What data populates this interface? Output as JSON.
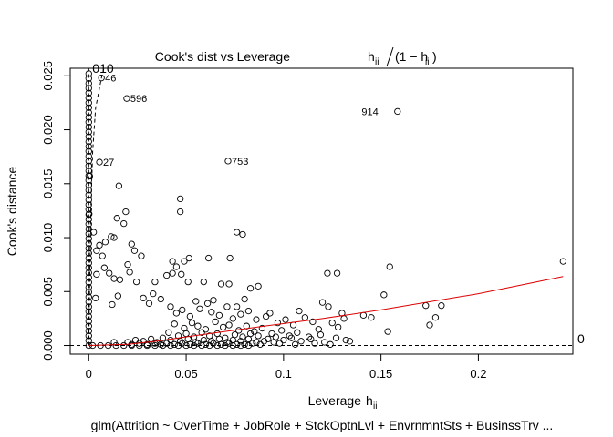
{
  "chart_data": {
    "type": "scatter",
    "title": "Cook's dist vs Leverage",
    "title_formula": {
      "prefix": "h",
      "sub": "ii",
      "open": "(1 − h",
      "close": ")"
    },
    "xlabel": "Leverage",
    "xlabel_symbol": {
      "base": "h",
      "sub": "ii"
    },
    "ylabel": "Cook's distance",
    "caption": "glm(Attrition ~ OverTime + JobRole + StckOptnLvl + EnvrnmntSts + BusinssTrv ...",
    "xlim": [
      -0.0095,
      0.2485
    ],
    "ylim": [
      -0.0008,
      0.0257
    ],
    "x_ticks": [
      0,
      0.05,
      0.1,
      0.15,
      0.2
    ],
    "x_tick_labels": [
      "0",
      "0.05",
      "0.1",
      "0.15",
      "0.2"
    ],
    "y_ticks": [
      0.0,
      0.005,
      0.01,
      0.015,
      0.02,
      0.025
    ],
    "y_tick_labels": [
      "0.000",
      "0.005",
      "0.010",
      "0.015",
      "0.020",
      "0.025"
    ],
    "grid": false,
    "legend": "none",
    "contour_label": "0",
    "point_labels": [
      {
        "text": "914",
        "x": 0.1505,
        "y": 0.0217,
        "side": "left"
      },
      {
        "text": "753",
        "x": 0.0715,
        "y": 0.0171,
        "side": "right"
      },
      {
        "text": "596",
        "x": 0.0195,
        "y": 0.0229,
        "side": "right"
      },
      {
        "text": "46",
        "x": 0.0065,
        "y": 0.0248,
        "side": "right"
      },
      {
        "text": "27",
        "x": 0.0055,
        "y": 0.017,
        "side": "right"
      },
      {
        "text": "010",
        "x": 0.0,
        "y": 0.0256,
        "side": "right"
      }
    ],
    "points": [
      [
        0.1585,
        0.0217
      ],
      [
        0.0715,
        0.0171
      ],
      [
        0.0195,
        0.0229
      ],
      [
        0.0065,
        0.0248
      ],
      [
        0.0055,
        0.017
      ],
      [
        0.0005,
        0.0157
      ],
      [
        0.0002,
        0.0122
      ],
      [
        0.0155,
        0.0148
      ],
      [
        0.019,
        0.0124
      ],
      [
        0.047,
        0.0136
      ],
      [
        0.047,
        0.0124
      ],
      [
        0.0025,
        0.0105
      ],
      [
        0.0145,
        0.0118
      ],
      [
        0.018,
        0.0113
      ],
      [
        0.076,
        0.0105
      ],
      [
        0.079,
        0.0103
      ],
      [
        0.0115,
        0.0101
      ],
      [
        0.013,
        0.01
      ],
      [
        0.004,
        0.0088
      ],
      [
        0.007,
        0.0083
      ],
      [
        0.0055,
        0.0093
      ],
      [
        0.0085,
        0.0096
      ],
      [
        0.022,
        0.0094
      ],
      [
        0.0235,
        0.0088
      ],
      [
        0.027,
        0.0083
      ],
      [
        0.02,
        0.0075
      ],
      [
        0.043,
        0.0078
      ],
      [
        0.049,
        0.0078
      ],
      [
        0.0515,
        0.0081
      ],
      [
        0.045,
        0.0073
      ],
      [
        0.04,
        0.0065
      ],
      [
        0.043,
        0.0067
      ],
      [
        0.0475,
        0.0066
      ],
      [
        0.0615,
        0.0081
      ],
      [
        0.0725,
        0.0081
      ],
      [
        0.004,
        0.0066
      ],
      [
        0.008,
        0.0072
      ],
      [
        0.0105,
        0.0067
      ],
      [
        0.013,
        0.0062
      ],
      [
        0.016,
        0.0061
      ],
      [
        0.021,
        0.0068
      ],
      [
        0.0245,
        0.0059
      ],
      [
        0.034,
        0.0059
      ],
      [
        0.051,
        0.0059
      ],
      [
        0.059,
        0.0059
      ],
      [
        0.068,
        0.0057
      ],
      [
        0.072,
        0.0057
      ],
      [
        0.083,
        0.0053
      ],
      [
        0.087,
        0.0055
      ],
      [
        0.1225,
        0.0067
      ],
      [
        0.1275,
        0.0067
      ],
      [
        0.1545,
        0.0073
      ],
      [
        0.1515,
        0.0047
      ],
      [
        0.2435,
        0.0078
      ],
      [
        0.0035,
        0.0044
      ],
      [
        0.012,
        0.0038
      ],
      [
        0.015,
        0.0046
      ],
      [
        0.028,
        0.0044
      ],
      [
        0.033,
        0.0048
      ],
      [
        0.031,
        0.0039
      ],
      [
        0.037,
        0.0043
      ],
      [
        0.042,
        0.0036
      ],
      [
        0.055,
        0.0041
      ],
      [
        0.061,
        0.0039
      ],
      [
        0.064,
        0.0042
      ],
      [
        0.071,
        0.0036
      ],
      [
        0.076,
        0.0036
      ],
      [
        0.08,
        0.0043
      ],
      [
        0.093,
        0.003
      ],
      [
        0.108,
        0.0032
      ],
      [
        0.12,
        0.004
      ],
      [
        0.123,
        0.0036
      ],
      [
        0.13,
        0.003
      ],
      [
        0.141,
        0.0028
      ],
      [
        0.145,
        0.0026
      ],
      [
        0.173,
        0.0037
      ],
      [
        0.181,
        0.0037
      ],
      [
        0.178,
        0.0026
      ],
      [
        0.175,
        0.0019
      ],
      [
        0.1535,
        0.0013
      ],
      [
        0.013,
        0.0003
      ],
      [
        0.045,
        0.003
      ],
      [
        0.048,
        0.0033
      ],
      [
        0.052,
        0.0027
      ],
      [
        0.057,
        0.0034
      ],
      [
        0.063,
        0.0031
      ],
      [
        0.067,
        0.0028
      ],
      [
        0.074,
        0.0025
      ],
      [
        0.078,
        0.0029
      ],
      [
        0.082,
        0.0032
      ],
      [
        0.086,
        0.0024
      ],
      [
        0.091,
        0.0027
      ],
      [
        0.097,
        0.0021
      ],
      [
        0.101,
        0.0024
      ],
      [
        0.105,
        0.0019
      ],
      [
        0.111,
        0.0026
      ],
      [
        0.115,
        0.0022
      ],
      [
        0.118,
        0.0015
      ],
      [
        0.125,
        0.0021
      ],
      [
        0.128,
        0.0017
      ],
      [
        0.131,
        0.0025
      ],
      [
        0.044,
        0.002
      ],
      [
        0.049,
        0.0016
      ],
      [
        0.053,
        0.0021
      ],
      [
        0.056,
        0.0018
      ],
      [
        0.06,
        0.0015
      ],
      [
        0.065,
        0.0022
      ],
      [
        0.069,
        0.0017
      ],
      [
        0.072,
        0.0019
      ],
      [
        0.077,
        0.0014
      ],
      [
        0.081,
        0.0018
      ],
      [
        0.085,
        0.0013
      ],
      [
        0.089,
        0.0016
      ],
      [
        0.094,
        0.0011
      ],
      [
        0.099,
        0.0014
      ],
      [
        0.103,
        0.0009
      ],
      [
        0.107,
        0.0012
      ],
      [
        0.113,
        0.0008
      ],
      [
        0.119,
        0.001
      ],
      [
        0.127,
        0.0007
      ],
      [
        0.132,
        0.0005
      ],
      [
        0.041,
        0.0012
      ],
      [
        0.046,
        0.0009
      ],
      [
        0.05,
        0.0011
      ],
      [
        0.054,
        0.0008
      ],
      [
        0.058,
        0.0012
      ],
      [
        0.062,
        0.0009
      ],
      [
        0.066,
        0.0011
      ],
      [
        0.07,
        0.0007
      ],
      [
        0.075,
        0.001
      ],
      [
        0.079,
        0.0008
      ],
      [
        0.083,
        0.0011
      ],
      [
        0.087,
        0.0009
      ],
      [
        0.092,
        0.0006
      ],
      [
        0.096,
        0.0008
      ],
      [
        0.1,
        0.0005
      ],
      [
        0.104,
        0.0007
      ],
      [
        0.109,
        0.0004
      ],
      [
        0.114,
        0.0006
      ],
      [
        0.121,
        0.0003
      ],
      [
        0.134,
        0.0004
      ],
      [
        0.02,
        0.0003
      ],
      [
        0.024,
        0.0005
      ],
      [
        0.028,
        0.0004
      ],
      [
        0.032,
        0.0006
      ],
      [
        0.035,
        0.0003
      ],
      [
        0.038,
        0.0007
      ],
      [
        0.042,
        0.0005
      ],
      [
        0.047,
        0.0004
      ],
      [
        0.051,
        0.0006
      ],
      [
        0.055,
        0.0003
      ],
      [
        0.059,
        0.0005
      ],
      [
        0.063,
        0.0004
      ],
      [
        0.067,
        0.0006
      ],
      [
        0.071,
        0.0003
      ],
      [
        0.074,
        0.0005
      ],
      [
        0.078,
        0.0004
      ],
      [
        0.082,
        0.0006
      ],
      [
        0.086,
        0.0003
      ],
      [
        0.09,
        0.0004
      ],
      [
        0.095,
        0.0003
      ],
      [
        0.022,
        0.0001
      ],
      [
        0.026,
        0.0002
      ],
      [
        0.03,
        0.0001
      ],
      [
        0.034,
        0.0002
      ],
      [
        0.037,
        0.0001
      ],
      [
        0.04,
        0.0002
      ],
      [
        0.044,
        0.0001
      ],
      [
        0.048,
        0.0002
      ],
      [
        0.052,
        0.0001
      ],
      [
        0.056,
        0.0002
      ],
      [
        0.06,
        0.0001
      ],
      [
        0.064,
        0.0002
      ],
      [
        0.068,
        0.0001
      ],
      [
        0.072,
        0.0002
      ],
      [
        0.076,
        0.0001
      ],
      [
        0.08,
        0.0001
      ],
      [
        0.084,
        0.0002
      ],
      [
        0.088,
        0.0001
      ],
      [
        0.098,
        0.0002
      ],
      [
        0.106,
        0.0001
      ],
      [
        0.116,
        0.0002
      ],
      [
        0.124,
        0.0001
      ],
      [
        0.002,
        0.0
      ],
      [
        0.006,
        0.0
      ],
      [
        0.01,
        0.0
      ],
      [
        0.014,
        0.0
      ],
      [
        0.018,
        0.0
      ],
      [
        0.022,
        0.0
      ],
      [
        0.026,
        0.0
      ],
      [
        0.03,
        0.0
      ],
      [
        0.034,
        0.0
      ],
      [
        0.038,
        0.0
      ],
      [
        0.042,
        0.0
      ],
      [
        0.046,
        0.0
      ],
      [
        0.05,
        0.0
      ],
      [
        0.054,
        0.0
      ],
      [
        0.058,
        0.0
      ],
      [
        0.062,
        0.0
      ],
      [
        0.066,
        0.0
      ],
      [
        0.07,
        0.0
      ],
      [
        0.074,
        0.0
      ],
      [
        0.078,
        0.0
      ],
      [
        0.082,
        0.0
      ]
    ],
    "zero_leverage_stack": {
      "x": 0.0,
      "y_from": 0.0,
      "y_to": 0.0256
    },
    "smooth_line": [
      [
        0.0,
        0.0
      ],
      [
        0.02,
        0.0001
      ],
      [
        0.035,
        0.0004
      ],
      [
        0.05,
        0.0008
      ],
      [
        0.07,
        0.0013
      ],
      [
        0.09,
        0.0018
      ],
      [
        0.12,
        0.0025
      ],
      [
        0.15,
        0.0033
      ],
      [
        0.2,
        0.0048
      ],
      [
        0.2435,
        0.0064
      ]
    ],
    "contour_lines": [
      {
        "style": "dashed",
        "points": [
          [
            0.0,
            0.0
          ],
          [
            0.0,
            0.0257
          ]
        ]
      },
      {
        "style": "dashed",
        "points": [
          [
            0.0,
            0.0
          ],
          [
            0.001,
            0.012
          ],
          [
            0.002,
            0.018
          ],
          [
            0.0035,
            0.022
          ],
          [
            0.0065,
            0.0248
          ],
          [
            0.0078,
            0.0257
          ]
        ]
      }
    ],
    "hline_y": 0.0
  }
}
